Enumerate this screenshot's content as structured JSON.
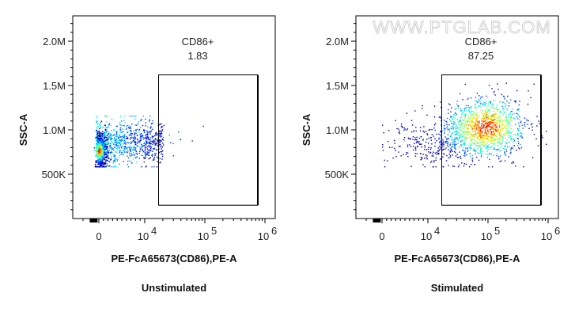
{
  "watermark": "WWW.PTGLAB.COM",
  "chart_data": [
    {
      "type": "scatter",
      "title": "Unstimulated",
      "xlabel": "PE-FcA65673(CD86),PE-A",
      "ylabel": "SSC-A",
      "x_scale": "biexponential",
      "x_ticks": [
        "0",
        "10^4",
        "10^5",
        "10^6"
      ],
      "y_ticks": [
        "500K",
        "1.0M",
        "1.5M",
        "2.0M"
      ],
      "ylim": [
        0,
        2286000
      ],
      "gate": {
        "name": "CD86+",
        "value": "1.83",
        "x_range": [
          17000,
          750000
        ],
        "y_range": [
          150000,
          1620000
        ]
      },
      "population": {
        "x_center": 0,
        "y_center": 750000,
        "density": "pseudocolor"
      }
    },
    {
      "type": "scatter",
      "title": "Stimulated",
      "xlabel": "PE-FcA65673(CD86),PE-A",
      "ylabel": "SSC-A",
      "x_scale": "biexponential",
      "x_ticks": [
        "0",
        "10^4",
        "10^5",
        "10^6"
      ],
      "y_ticks": [
        "500K",
        "1.0M",
        "1.5M",
        "2.0M"
      ],
      "ylim": [
        0,
        2286000
      ],
      "gate": {
        "name": "CD86+",
        "value": "87.25",
        "x_range": [
          17000,
          750000
        ],
        "y_range": [
          150000,
          1620000
        ]
      },
      "population": {
        "x_center": 80000,
        "y_center": 1000000,
        "density": "pseudocolor"
      }
    }
  ]
}
